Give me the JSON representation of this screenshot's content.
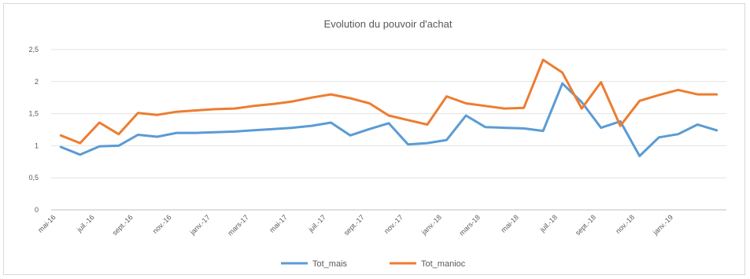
{
  "chart_data": {
    "type": "line",
    "title": "Evolution du pouvoir d'achat",
    "ylim": [
      0,
      2.5
    ],
    "yticks": [
      "0",
      "0,5",
      "1",
      "1,5",
      "2",
      "2,5"
    ],
    "xtick_labels": [
      "mai-16",
      "juil.-16",
      "sept.-16",
      "nov.-16",
      "janv.-17",
      "mars-17",
      "mai-17",
      "juil.-17",
      "sept.-17",
      "nov.-17",
      "janv.-18",
      "mars-18",
      "mai-18",
      "juil.-18",
      "sept.-18",
      "nov.-18",
      "janv.-19"
    ],
    "grid": true,
    "legend": "bottom",
    "series": [
      {
        "name": "Tot_mais",
        "color": "#5b9bd5",
        "values": [
          0.98,
          0.86,
          0.99,
          1.0,
          1.17,
          1.14,
          1.2,
          1.2,
          1.21,
          1.22,
          1.24,
          1.26,
          1.28,
          1.31,
          1.36,
          1.16,
          1.26,
          1.35,
          1.02,
          1.04,
          1.09,
          1.47,
          1.29,
          1.28,
          1.27,
          1.23,
          1.97,
          1.68,
          1.28,
          1.38,
          0.84,
          1.13,
          1.18,
          1.33,
          1.24
        ]
      },
      {
        "name": "Tot_manioc",
        "color": "#ed7d31",
        "values": [
          1.16,
          1.04,
          1.36,
          1.18,
          1.51,
          1.48,
          1.53,
          1.55,
          1.57,
          1.58,
          1.62,
          1.65,
          1.69,
          1.75,
          1.8,
          1.74,
          1.66,
          1.47,
          1.4,
          1.33,
          1.77,
          1.66,
          1.62,
          1.58,
          1.59,
          2.34,
          2.14,
          1.58,
          1.99,
          1.31,
          1.7,
          1.79,
          1.87,
          1.8,
          1.8
        ]
      }
    ]
  }
}
